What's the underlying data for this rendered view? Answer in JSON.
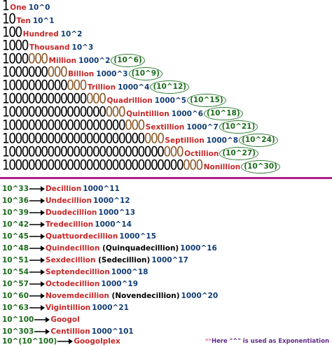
{
  "top_rows": [
    {
      "digits": "1",
      "zeros": "",
      "group": "",
      "name": "One",
      "power": "10^0",
      "extra": ""
    },
    {
      "digits": "10",
      "zeros": "",
      "group": "",
      "name": "Ten",
      "power": "10^1",
      "extra": ""
    },
    {
      "digits": "100",
      "zeros": "",
      "group": "",
      "name": "Hundred",
      "power": "10^2",
      "extra": ""
    },
    {
      "digits": "1000",
      "zeros": "",
      "group": "",
      "name": "Thousand",
      "power": "10^3",
      "extra": ""
    },
    {
      "digits": "1000",
      "zeros": "",
      "group": "000",
      "name": "Million",
      "power": "1000^2",
      "extra": "(10^6)"
    },
    {
      "digits": "1000000",
      "zeros": "",
      "group": "000",
      "name": "Billion",
      "power": "1000^3",
      "extra": "(10^9)"
    },
    {
      "digits": "1000000000",
      "zeros": "",
      "group": "000",
      "name": "Trillion",
      "power": "1000^4",
      "extra": "(10^12)"
    },
    {
      "digits": "1000000000000",
      "zeros": "",
      "group": "000",
      "name": "Quadrillion",
      "power": "1000^5",
      "extra": "(10^15)"
    },
    {
      "digits": "1000000000000000",
      "zeros": "",
      "group": "000",
      "name": "Quintillion",
      "power": "1000^6",
      "extra": "(10^18)"
    },
    {
      "digits": "1000000000000000000",
      "zeros": "",
      "group": "000",
      "name": "Sextillion",
      "power": "1000^7",
      "extra": "(10^21)"
    },
    {
      "digits": "1000000000000000000000",
      "zeros": "",
      "group": "000",
      "name": "Septillion",
      "power": "1000^8",
      "extra": "(10^24)"
    },
    {
      "digits": "1000000000000000000000000",
      "zeros": "",
      "group": "000",
      "name": "Octillion",
      "power": "",
      "extra": "(10^27)"
    },
    {
      "digits": "1000000000000000000000000000",
      "zeros": "",
      "group": "000",
      "name": "Nonillion",
      "power": "",
      "extra": "(10^30)"
    }
  ],
  "bottom_rows": [
    {
      "exp": "10^33",
      "name": "Decillion",
      "alt": "",
      "power": "1000^11"
    },
    {
      "exp": "10^36",
      "name": "Undecillion",
      "alt": "",
      "power": "1000^12"
    },
    {
      "exp": "10^39",
      "name": "Duodecillion",
      "alt": "",
      "power": "1000^13"
    },
    {
      "exp": "10^42",
      "name": "Tredecillion",
      "alt": "",
      "power": "1000^14"
    },
    {
      "exp": "10^45",
      "name": "Quattuordecillion",
      "alt": "",
      "power": "1000^15"
    },
    {
      "exp": "10^48",
      "name": "Quindecillion",
      "alt": "(Quinquadecillion)",
      "power": "1000^16"
    },
    {
      "exp": "10^51",
      "name": "Sexdecillion",
      "alt": "(Sedecillion)",
      "power": "1000^17"
    },
    {
      "exp": "10^54",
      "name": "Septendecillion",
      "alt": "",
      "power": "1000^18"
    },
    {
      "exp": "10^57",
      "name": "Octodecillion",
      "alt": "",
      "power": "1000^19"
    },
    {
      "exp": "10^60",
      "name": "Novemdecillion",
      "alt": "(Novendecillion)",
      "power": "1000^20"
    },
    {
      "exp": "10^63",
      "name": "Vigintillion",
      "alt": "",
      "power": "1000^21"
    },
    {
      "exp": "10^100",
      "name": "Googol",
      "alt": "",
      "power": ""
    },
    {
      "exp": "10^303",
      "name": "Centillion",
      "alt": "",
      "power": "1000^101"
    },
    {
      "exp": "10^(10^100)",
      "name": "Googolplex",
      "alt": "",
      "power": ""
    }
  ],
  "footnote": {
    "stars": "**",
    "prefix": "Here ",
    "symbol": "\"^\"",
    "suffix": " is used as Exponentiation"
  },
  "colors": {
    "name": "#C62828",
    "power": "#123d73",
    "exp": "#1b6b1b",
    "brown": "#8B5A2B",
    "divider": "#b0208a"
  }
}
